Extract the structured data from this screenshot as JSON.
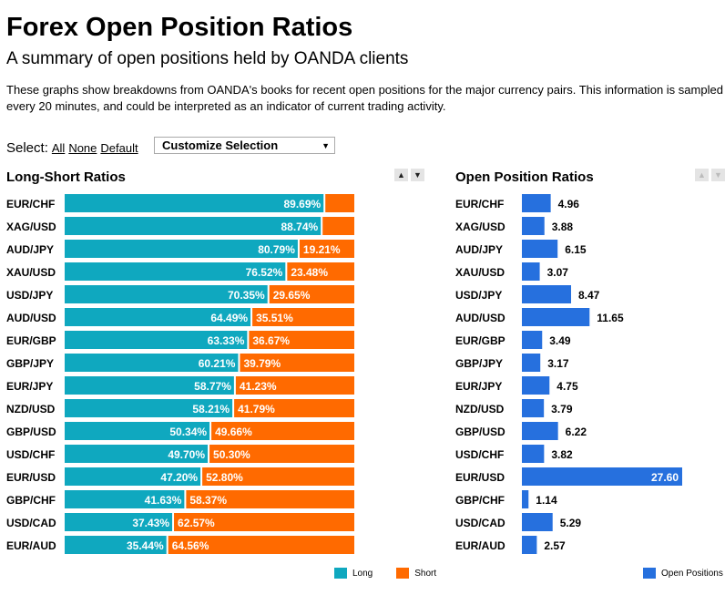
{
  "page": {
    "title": "Forex Open Position Ratios",
    "subtitle": "A summary of open positions held by OANDA clients",
    "description": "These graphs show breakdowns from OANDA's books for recent open positions for the major currency pairs. This information is sampled every 20 minutes, and could be interpreted as an indicator of current trading activity."
  },
  "select": {
    "label": "Select:",
    "all": "All",
    "none": "None",
    "default": "Default",
    "dropdown_value": "Customize Selection"
  },
  "icons": {
    "sort_up": "▲",
    "sort_down": "▼",
    "dropdown_arrow": "▼"
  },
  "colors": {
    "long": "#0FA8BF",
    "short": "#FF6A00",
    "open": "#2670DE"
  },
  "chart_data": [
    {
      "type": "bar",
      "orientation": "horizontal",
      "stacked": true,
      "title": "Long-Short Ratios",
      "categories": [
        "EUR/CHF",
        "XAG/USD",
        "AUD/JPY",
        "XAU/USD",
        "USD/JPY",
        "AUD/USD",
        "EUR/GBP",
        "GBP/JPY",
        "EUR/JPY",
        "NZD/USD",
        "GBP/USD",
        "USD/CHF",
        "EUR/USD",
        "GBP/CHF",
        "USD/CAD",
        "EUR/AUD"
      ],
      "series": [
        {
          "name": "Long",
          "values": [
            89.69,
            88.74,
            80.79,
            76.52,
            70.35,
            64.49,
            63.33,
            60.21,
            58.77,
            58.21,
            50.34,
            49.7,
            47.2,
            41.63,
            37.43,
            35.44
          ]
        },
        {
          "name": "Short",
          "values": [
            10.31,
            11.26,
            19.21,
            23.48,
            29.65,
            35.51,
            36.67,
            39.79,
            41.23,
            41.79,
            49.66,
            50.3,
            52.8,
            58.37,
            62.57,
            64.56
          ]
        }
      ],
      "labels": {
        "Long": [
          "89.69%",
          "88.74%",
          "80.79%",
          "76.52%",
          "70.35%",
          "64.49%",
          "63.33%",
          "60.21%",
          "58.77%",
          "58.21%",
          "50.34%",
          "49.70%",
          "47.20%",
          "41.63%",
          "37.43%",
          "35.44%"
        ],
        "Short": [
          "",
          "",
          "19.21%",
          "23.48%",
          "29.65%",
          "35.51%",
          "36.67%",
          "39.79%",
          "41.23%",
          "41.79%",
          "49.66%",
          "50.30%",
          "52.80%",
          "58.37%",
          "62.57%",
          "64.56%"
        ]
      },
      "legend": "bottom-right"
    },
    {
      "type": "bar",
      "orientation": "horizontal",
      "title": "Open Position Ratios",
      "categories": [
        "EUR/CHF",
        "XAG/USD",
        "AUD/JPY",
        "XAU/USD",
        "USD/JPY",
        "AUD/USD",
        "EUR/GBP",
        "GBP/JPY",
        "EUR/JPY",
        "NZD/USD",
        "GBP/USD",
        "USD/CHF",
        "EUR/USD",
        "GBP/CHF",
        "USD/CAD",
        "EUR/AUD"
      ],
      "series": [
        {
          "name": "Open Positions",
          "values": [
            4.96,
            3.88,
            6.15,
            3.07,
            8.47,
            11.65,
            3.49,
            3.17,
            4.75,
            3.79,
            6.22,
            3.82,
            27.6,
            1.14,
            5.29,
            2.57
          ]
        }
      ],
      "labels": [
        "4.96",
        "3.88",
        "6.15",
        "3.07",
        "8.47",
        "11.65",
        "3.49",
        "3.17",
        "4.75",
        "3.79",
        "6.22",
        "3.82",
        "27.60",
        "1.14",
        "5.29",
        "2.57"
      ],
      "legend": "bottom-right"
    }
  ]
}
